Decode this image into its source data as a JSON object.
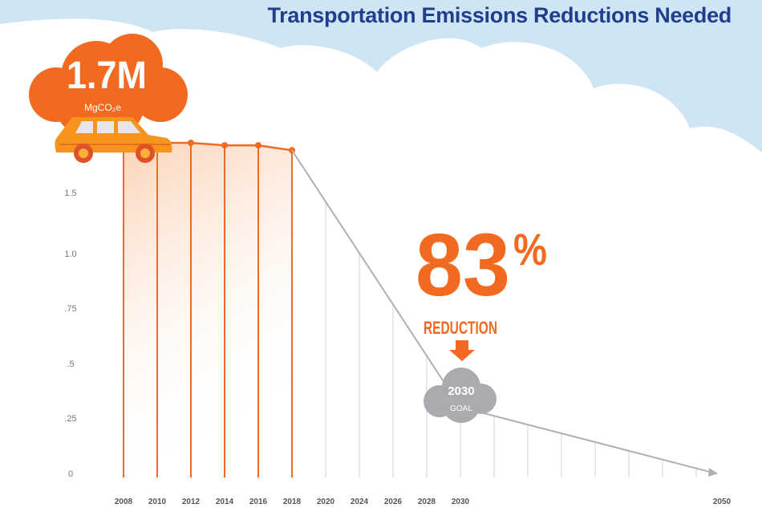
{
  "title": "Transportation Emissions Reductions Needed",
  "headline": {
    "value": "1.7M",
    "unit": "MgCO₂e",
    "icon": "car-icon"
  },
  "callout": {
    "value": "83",
    "percent_sign": "%",
    "label": "REDUCTION",
    "icon": "arrow-down-icon"
  },
  "goal": {
    "year": "2030",
    "label": "GOAL"
  },
  "colors": {
    "actual": "#f26a1f",
    "projection": "#b0b0b0",
    "title": "#1f3e8e",
    "sky": "#cfe5f4"
  },
  "chart_data": {
    "type": "line",
    "title": "Transportation Emissions Reductions Needed",
    "xlabel": "",
    "ylabel": "",
    "y_tick_labels": [
      "0",
      ".25",
      ".5",
      ".75",
      "1.0",
      "1.5"
    ],
    "x_tick_labels": [
      "2008",
      "2010",
      "2012",
      "2014",
      "2016",
      "2018",
      "2020",
      "2024",
      "2026",
      "2028",
      "2030",
      "2050"
    ],
    "grid": "vertical lines",
    "series": [
      {
        "style": "actual (orange, filled)",
        "x": [
          "2008",
          "2010",
          "2012",
          "2014",
          "2016",
          "2018"
        ],
        "y": [
          1.7,
          1.7,
          1.7,
          1.69,
          1.69,
          1.67
        ]
      },
      {
        "style": "target (gray)",
        "x": [
          "2018",
          "2030",
          "2050"
        ],
        "y": [
          1.67,
          0.3,
          0
        ]
      }
    ]
  }
}
